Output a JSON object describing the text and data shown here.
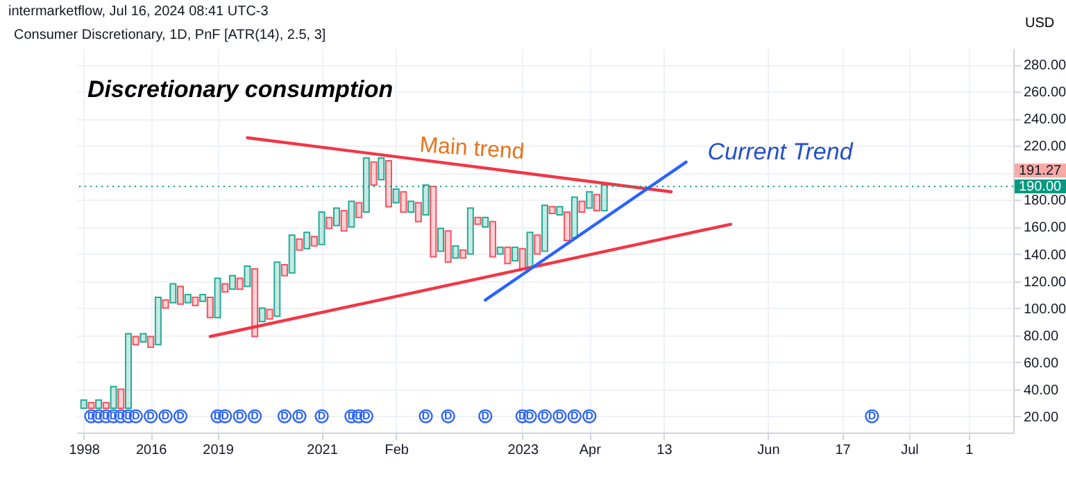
{
  "chart_data": {
    "type": "bar",
    "title": "Consumer Discretionary, 1D, PnF [ATR(14), 2.5, 3]",
    "ylabel": "USD",
    "annotations": [
      "intermarketflow, Jul 16, 2024 08:41 UTC-3",
      "Discretionary consumption",
      "Main trend",
      "Current Trend",
      "191.27"
    ],
    "categories": [
      "1998",
      null,
      null,
      null,
      null,
      null,
      null,
      null,
      null,
      "2016",
      null,
      null,
      null,
      null,
      null,
      null,
      null,
      null,
      "2019",
      null,
      null,
      null,
      null,
      null,
      null,
      null,
      null,
      null,
      null,
      null,
      null,
      null,
      "2021",
      null,
      null,
      null,
      null,
      null,
      null,
      null,
      null,
      null,
      "Feb",
      null,
      null,
      null,
      null,
      null,
      null,
      null,
      null,
      null,
      null,
      null,
      null,
      null,
      null,
      null,
      null,
      "2023",
      null,
      null,
      null,
      null,
      null,
      null,
      null,
      null,
      "Apr",
      null,
      null,
      null,
      null,
      null,
      null,
      null,
      null,
      null,
      "13",
      null,
      null,
      null,
      null,
      null,
      null,
      null,
      null,
      null,
      null,
      null,
      null,
      null,
      "Jun",
      null,
      null,
      null,
      null,
      null,
      null,
      null,
      null,
      null,
      "17",
      null,
      null,
      null,
      null,
      null,
      null,
      null,
      null,
      "Jul",
      null,
      null,
      null,
      null,
      null,
      null,
      null,
      "1",
      null,
      null,
      null,
      null,
      null
    ],
    "series": [
      {
        "values": [
          6,
          4,
          6,
          4,
          16,
          14,
          55,
          6,
          6,
          8,
          35,
          6,
          14,
          13,
          6,
          6,
          5,
          15,
          29,
          6,
          10,
          8,
          15,
          50,
          10,
          7,
          40,
          8,
          28,
          8,
          12,
          7,
          24,
          8,
          13,
          15,
          19,
          11,
          40,
          17,
          16,
          34,
          10,
          15,
          8,
          14,
          22,
          52,
          17,
          23,
          9,
          6,
          34,
          5,
          7,
          26,
          5,
          12,
          10,
          15,
          26,
          14,
          34,
          5,
          6,
          21,
          30,
          8,
          12,
          12,
          19,
          null,
          null,
          null,
          null,
          null,
          null,
          null,
          null,
          null,
          null,
          null,
          null,
          null,
          null,
          null,
          null,
          null,
          null,
          null,
          null,
          null,
          null,
          null,
          null,
          null,
          null,
          null,
          null,
          null,
          null,
          null,
          null,
          null,
          null,
          null,
          null,
          null,
          null,
          null,
          null,
          null,
          null,
          null,
          null,
          null,
          null,
          null,
          null,
          null,
          null,
          null,
          null,
          null,
          null
        ],
        "base": [
          26,
          26,
          26,
          26,
          26,
          26,
          26,
          73,
          75,
          71,
          73,
          100,
          104,
          103,
          104,
          102,
          105,
          93,
          93,
          112,
          114,
          114,
          116,
          79,
          90,
          92,
          94,
          124,
          126,
          143,
          144,
          146,
          147,
          159,
          161,
          157,
          160,
          167,
          171,
          191,
          195,
          175,
          178,
          171,
          171,
          164,
          169,
          138,
          142,
          134,
          137,
          137,
          140,
          162,
          160,
          138,
          140,
          133,
          135,
          129,
          130,
          140,
          142,
          170,
          169,
          150,
          152,
          171,
          174,
          172,
          172,
          null,
          null,
          null,
          null,
          null,
          null,
          null,
          null,
          null,
          null,
          null,
          null,
          null,
          null,
          null,
          null,
          null,
          null,
          null,
          null,
          null,
          null,
          null,
          null,
          null,
          null,
          null,
          null,
          null,
          null,
          null,
          null,
          null,
          null,
          null,
          null,
          null,
          null,
          null,
          null,
          null,
          null,
          null,
          null,
          null,
          null,
          null,
          null,
          null,
          null,
          null,
          null,
          null,
          null
        ],
        "colors": [
          "#22ab94",
          "#f7525f",
          "#22ab94",
          "#f7525f",
          "#22ab94",
          "#f7525f",
          "#22ab94",
          "#f7525f",
          "#22ab94",
          "#f7525f",
          "#22ab94",
          "#f7525f",
          "#22ab94",
          "#f7525f",
          "#22ab94",
          "#f7525f",
          "#22ab94",
          "#f7525f",
          "#22ab94",
          "#f7525f",
          "#22ab94",
          "#f7525f",
          "#22ab94",
          "#f7525f",
          "#22ab94",
          "#f7525f",
          "#22ab94",
          "#f7525f",
          "#22ab94",
          "#f7525f",
          "#22ab94",
          "#f7525f",
          "#22ab94",
          "#f7525f",
          "#22ab94",
          "#f7525f",
          "#22ab94",
          "#f7525f",
          "#22ab94",
          "#f7525f",
          "#22ab94",
          "#f7525f",
          "#22ab94",
          "#f7525f",
          "#22ab94",
          "#f7525f",
          "#22ab94",
          "#f7525f",
          "#22ab94",
          "#f7525f",
          "#22ab94",
          "#f7525f",
          "#22ab94",
          "#f7525f",
          "#22ab94",
          "#f7525f",
          "#22ab94",
          "#f7525f",
          "#22ab94",
          "#f7525f",
          "#22ab94",
          "#f7525f",
          "#22ab94",
          "#f7525f",
          "#22ab94",
          "#f7525f",
          "#22ab94",
          "#f7525f",
          "#22ab94",
          "#f7525f",
          "#22ab94",
          null,
          null,
          null,
          null,
          null,
          null,
          null,
          null,
          null,
          null,
          null,
          null,
          null,
          null,
          null,
          null,
          null,
          null,
          null,
          null,
          null,
          null,
          null,
          null,
          null,
          null,
          null,
          null,
          null,
          null,
          null,
          null,
          null,
          null,
          null,
          null,
          null,
          null,
          null,
          null,
          null,
          null,
          null,
          null,
          null,
          null,
          null,
          null,
          null,
          null,
          null,
          null,
          null,
          null
        ]
      },
      {
        "type": "line",
        "color": "#f23645",
        "values": [
          null,
          null,
          null,
          null,
          null,
          null,
          null,
          null,
          null,
          null,
          null,
          null,
          null,
          null,
          null,
          null,
          null,
          null,
          null,
          null,
          null,
          null,
          226,
          null,
          null,
          null,
          null,
          null,
          null,
          null,
          null,
          null,
          null,
          null,
          null,
          null,
          null,
          null,
          null,
          null,
          null,
          null,
          null,
          null,
          null,
          null,
          null,
          null,
          null,
          null,
          null,
          null,
          null,
          null,
          null,
          null,
          null,
          null,
          null,
          null,
          null,
          null,
          null,
          null,
          null,
          null,
          null,
          null,
          null,
          null,
          null,
          null,
          null,
          null,
          null,
          null,
          null,
          null,
          null,
          186,
          null,
          null,
          null,
          null,
          null,
          null,
          null,
          null,
          null,
          null,
          null,
          null,
          null,
          null,
          null,
          null,
          null,
          null,
          null,
          null,
          null,
          null,
          null,
          null,
          null,
          null,
          null,
          null,
          null,
          null,
          null,
          null,
          null,
          null,
          null,
          null,
          null,
          null,
          null,
          null,
          null,
          null,
          null,
          null,
          null
        ]
      },
      {
        "type": "line",
        "color": "#f23645",
        "values": [
          null,
          null,
          null,
          null,
          null,
          null,
          null,
          null,
          null,
          null,
          null,
          null,
          null,
          null,
          null,
          null,
          null,
          79,
          null,
          null,
          null,
          null,
          null,
          null,
          null,
          null,
          null,
          null,
          null,
          null,
          null,
          null,
          null,
          null,
          null,
          null,
          null,
          null,
          null,
          null,
          null,
          null,
          null,
          null,
          null,
          null,
          null,
          null,
          null,
          null,
          null,
          null,
          null,
          null,
          null,
          null,
          null,
          null,
          null,
          null,
          null,
          null,
          null,
          null,
          null,
          null,
          null,
          null,
          null,
          null,
          null,
          null,
          null,
          null,
          null,
          null,
          null,
          null,
          null,
          null,
          null,
          null,
          null,
          null,
          null,
          null,
          null,
          162,
          null,
          null,
          null,
          null,
          null,
          null,
          null,
          null,
          null,
          null,
          null,
          null,
          null,
          null,
          null,
          null,
          null,
          null,
          null,
          null,
          null,
          null,
          null,
          null,
          null,
          null,
          null,
          null,
          null,
          null,
          null,
          null,
          null,
          null,
          null,
          null,
          null
        ]
      },
      {
        "type": "line",
        "color": "#2962ff",
        "values": [
          null,
          null,
          null,
          null,
          null,
          null,
          null,
          null,
          null,
          null,
          null,
          null,
          null,
          null,
          null,
          null,
          null,
          null,
          null,
          null,
          null,
          null,
          null,
          null,
          null,
          null,
          null,
          null,
          null,
          null,
          null,
          null,
          null,
          null,
          null,
          null,
          null,
          null,
          null,
          null,
          null,
          null,
          null,
          null,
          null,
          null,
          null,
          null,
          null,
          null,
          null,
          null,
          null,
          null,
          106,
          null,
          null,
          null,
          null,
          null,
          null,
          null,
          null,
          null,
          null,
          null,
          null,
          null,
          null,
          null,
          null,
          null,
          null,
          null,
          null,
          null,
          null,
          null,
          null,
          null,
          null,
          208,
          null,
          null,
          null,
          null,
          null,
          null,
          null,
          null,
          null,
          null,
          null,
          null,
          null,
          null,
          null,
          null,
          null,
          null,
          null,
          null,
          null,
          null,
          null,
          null,
          null,
          null,
          null,
          null,
          null,
          null,
          null,
          null,
          null,
          null,
          null,
          null,
          null,
          null,
          null,
          null,
          null,
          null,
          null
        ]
      },
      {
        "type": "scatter",
        "color": "#2962ff",
        "marker": "circle",
        "values": [
          null,
          20,
          20,
          20,
          20,
          20,
          20,
          20,
          null,
          20,
          null,
          20,
          null,
          20,
          null,
          null,
          null,
          null,
          20,
          20,
          null,
          20,
          null,
          20,
          null,
          null,
          null,
          20,
          null,
          20,
          null,
          null,
          20,
          null,
          null,
          null,
          20,
          20,
          20,
          null,
          null,
          null,
          null,
          null,
          null,
          null,
          20,
          null,
          null,
          20,
          null,
          null,
          null,
          null,
          20,
          null,
          null,
          null,
          null,
          20,
          20,
          null,
          20,
          null,
          20,
          null,
          20,
          null,
          20,
          null,
          null,
          null,
          null,
          null,
          null,
          null,
          null,
          null,
          null,
          null,
          null,
          null,
          null,
          null,
          null,
          null,
          null,
          null,
          null,
          null,
          null,
          null,
          null,
          null,
          null,
          null,
          null,
          null,
          null,
          null,
          null,
          null,
          null,
          null,
          null,
          null,
          20,
          null,
          null,
          null,
          null,
          null,
          null,
          null,
          null,
          null,
          null,
          null,
          null,
          null,
          null,
          null,
          null,
          null,
          null
        ],
        "value_labels": [
          null,
          "D",
          "D",
          "D",
          "D",
          "D",
          "D",
          "D",
          null,
          "D",
          null,
          "D",
          null,
          "D",
          null,
          null,
          null,
          null,
          "D",
          "D",
          null,
          "D",
          null,
          "D",
          null,
          null,
          null,
          "D",
          null,
          "D",
          null,
          null,
          "D",
          null,
          null,
          null,
          "D",
          "D",
          "D",
          null,
          null,
          null,
          null,
          null,
          null,
          null,
          "D",
          null,
          null,
          "D",
          null,
          null,
          null,
          null,
          "D",
          null,
          null,
          null,
          null,
          "D",
          "D",
          null,
          "D",
          null,
          "D",
          null,
          "D",
          null,
          "D",
          null,
          null,
          null,
          null,
          null,
          null,
          null,
          null,
          null,
          null,
          null,
          null,
          null,
          null,
          null,
          null,
          null,
          null,
          null,
          null,
          null,
          null,
          null,
          null,
          null,
          null,
          null,
          null,
          null,
          null,
          null,
          null,
          null,
          null,
          null,
          null,
          null,
          "D",
          null,
          null,
          null,
          null,
          null,
          null,
          null,
          null,
          null,
          null,
          null,
          null,
          null,
          null,
          null,
          null,
          null,
          null
        ]
      }
    ],
    "ref_lines": [
      {
        "axis": "y",
        "value": 190,
        "label": "190.00",
        "color": "#089981",
        "line_style": "dotted"
      }
    ],
    "ylim": [
      8,
      292
    ],
    "yticks": [
      {
        "value": 20,
        "label": "20.00"
      },
      {
        "value": 40,
        "label": "40.00"
      },
      {
        "value": 60,
        "label": "60.00"
      },
      {
        "value": 80,
        "label": "80.00"
      },
      {
        "value": 100,
        "label": "100.00"
      },
      {
        "value": 120,
        "label": "120.00"
      },
      {
        "value": 140,
        "label": "140.00"
      },
      {
        "value": 160,
        "label": "160.00"
      },
      {
        "value": 180,
        "label": "180.00"
      },
      {
        "value": 200,
        "label": null
      },
      {
        "value": 220,
        "label": "220.00"
      },
      {
        "value": 240,
        "label": "240.00"
      },
      {
        "value": 260,
        "label": "260.00"
      },
      {
        "value": 280,
        "label": "280.00"
      }
    ],
    "grid": true
  }
}
